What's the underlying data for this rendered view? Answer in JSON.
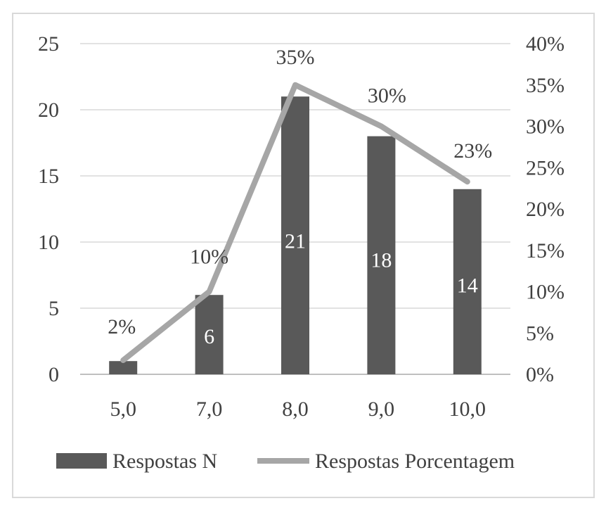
{
  "chart_data": {
    "type": "bar",
    "categories": [
      "5,0",
      "7,0",
      "8,0",
      "9,0",
      "10,0"
    ],
    "series": [
      {
        "name": "Respostas N",
        "type": "bar",
        "axis": "left",
        "values": [
          1,
          6,
          21,
          18,
          14
        ],
        "labels": [
          "",
          "6",
          "21",
          "18",
          "14"
        ],
        "color": "#595959"
      },
      {
        "name": "Respostas Porcentagem",
        "type": "line",
        "axis": "right",
        "values": [
          1.7,
          10,
          35,
          30,
          23.3
        ],
        "labels": [
          "2%",
          "10%",
          "35%",
          "30%",
          "23%"
        ],
        "color": "#a6a6a6"
      }
    ],
    "title": "",
    "xlabel": "",
    "ylabel": "",
    "ylim": [
      0,
      25
    ],
    "yticks": [
      "0",
      "5",
      "10",
      "15",
      "20",
      "25"
    ],
    "y2lim": [
      0,
      40
    ],
    "y2ticks": [
      "0%",
      "5%",
      "10%",
      "15%",
      "20%",
      "25%",
      "30%",
      "35%",
      "40%"
    ],
    "grid": true,
    "legend": "bottom"
  }
}
